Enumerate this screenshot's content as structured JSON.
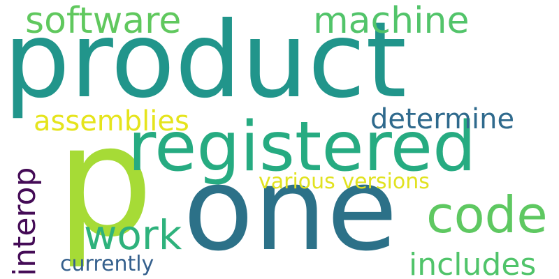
{
  "words": {
    "product": {
      "text": "product",
      "color": "#21958b"
    },
    "p": {
      "text": "p",
      "color": "#a6db36"
    },
    "one": {
      "text": "one",
      "color": "#2c7188"
    },
    "registered": {
      "text": "registered",
      "color": "#26ab81"
    },
    "software": {
      "text": "software",
      "color": "#60c85e"
    },
    "machine": {
      "text": "machine",
      "color": "#52c46a"
    },
    "assemblies": {
      "text": "assemblies",
      "color": "#e5e41c"
    },
    "determine": {
      "text": "determine",
      "color": "#2f6a8d"
    },
    "various": {
      "text": "various versions",
      "color": "#e1e220"
    },
    "code": {
      "text": "code",
      "color": "#5ec861"
    },
    "work": {
      "text": "work",
      "color": "#2eb27c"
    },
    "includes": {
      "text": "includes",
      "color": "#50c46a"
    },
    "currently": {
      "text": "currently",
      "color": "#35608d"
    },
    "interop": {
      "text": "interop",
      "color": "#440b56"
    }
  }
}
